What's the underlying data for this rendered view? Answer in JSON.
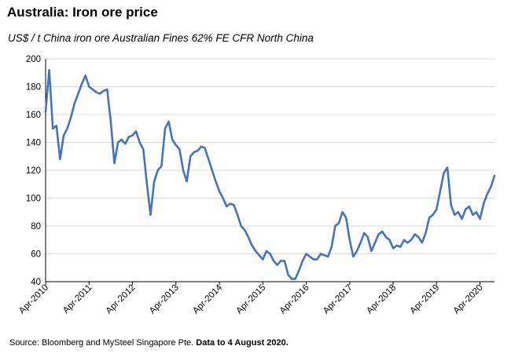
{
  "page": {
    "title": "Australia: Iron ore price",
    "subtitle": "US$ / t  China iron ore Australian Fines 62% FE CFR North China",
    "source": "Source: Bloomberg and MySteel Singapore Pte.",
    "data_note": "Data to 4 August 2020."
  },
  "colors": {
    "line": "#4472C4",
    "grid": "#d9d9d9",
    "axis": "#000000"
  },
  "chart_data": {
    "type": "line",
    "title": "Australia: Iron ore price",
    "ylabel": "US$ / t  China iron ore Australian Fines 62% FE CFR North China",
    "xlabel": "",
    "ylim": [
      40,
      200
    ],
    "yticks": [
      40,
      60,
      80,
      100,
      120,
      140,
      160,
      180,
      200
    ],
    "xlim": [
      "2010-04",
      "2020-08"
    ],
    "xticks": [
      "Apr-2010",
      "Apr-2011",
      "Apr-2012",
      "Apr-2013",
      "Apr-2014",
      "Apr-2015",
      "Apr-2016",
      "Apr-2017",
      "Apr-2018",
      "Apr-2019",
      "Apr-2020"
    ],
    "grid": true,
    "legend": "none",
    "series": [
      {
        "x": [
          "2010-04",
          "2010-05",
          "2010-06",
          "2010-07",
          "2010-08",
          "2010-09",
          "2010-10",
          "2010-11",
          "2010-12",
          "2011-01",
          "2011-02",
          "2011-03",
          "2011-04",
          "2011-05",
          "2011-06",
          "2011-07",
          "2011-08",
          "2011-09",
          "2011-10",
          "2011-11",
          "2011-12",
          "2012-01",
          "2012-02",
          "2012-03",
          "2012-04",
          "2012-05",
          "2012-06",
          "2012-07",
          "2012-08",
          "2012-09",
          "2012-10",
          "2012-11",
          "2012-12",
          "2013-01",
          "2013-02",
          "2013-03",
          "2013-04",
          "2013-05",
          "2013-06",
          "2013-07",
          "2013-08",
          "2013-09",
          "2013-10",
          "2013-11",
          "2013-12",
          "2014-01",
          "2014-02",
          "2014-03",
          "2014-04",
          "2014-05",
          "2014-06",
          "2014-07",
          "2014-08",
          "2014-09",
          "2014-10",
          "2014-11",
          "2014-12",
          "2015-01",
          "2015-02",
          "2015-03",
          "2015-04",
          "2015-05",
          "2015-06",
          "2015-07",
          "2015-08",
          "2015-09",
          "2015-10",
          "2015-11",
          "2015-12",
          "2016-01",
          "2016-02",
          "2016-03",
          "2016-04",
          "2016-05",
          "2016-06",
          "2016-07",
          "2016-08",
          "2016-09",
          "2016-10",
          "2016-11",
          "2016-12",
          "2017-01",
          "2017-02",
          "2017-03",
          "2017-04",
          "2017-05",
          "2017-06",
          "2017-07",
          "2017-08",
          "2017-09",
          "2017-10",
          "2017-11",
          "2017-12",
          "2018-01",
          "2018-02",
          "2018-03",
          "2018-04",
          "2018-05",
          "2018-06",
          "2018-07",
          "2018-08",
          "2018-09",
          "2018-10",
          "2018-11",
          "2018-12",
          "2019-01",
          "2019-02",
          "2019-03",
          "2019-04",
          "2019-05",
          "2019-06",
          "2019-07",
          "2019-08",
          "2019-09",
          "2019-10",
          "2019-11",
          "2019-12",
          "2020-01",
          "2020-02",
          "2020-03",
          "2020-04",
          "2020-05",
          "2020-06",
          "2020-07",
          "2020-08"
        ],
        "y": [
          162,
          192,
          150,
          152,
          128,
          145,
          150,
          158,
          168,
          175,
          182,
          188,
          180,
          178,
          176,
          175,
          177,
          178,
          155,
          125,
          140,
          142,
          139,
          144,
          145,
          148,
          140,
          135,
          110,
          88,
          112,
          120,
          123,
          150,
          155,
          142,
          138,
          135,
          120,
          112,
          130,
          133,
          134,
          137,
          136,
          128,
          120,
          112,
          105,
          100,
          94,
          96,
          95,
          88,
          80,
          77,
          72,
          66,
          62,
          59,
          56,
          62,
          60,
          55,
          52,
          55,
          55,
          45,
          42,
          42,
          48,
          55,
          60,
          58,
          56,
          56,
          60,
          59,
          58,
          65,
          80,
          82,
          90,
          86,
          70,
          58,
          62,
          68,
          75,
          72,
          62,
          68,
          74,
          76,
          72,
          70,
          64,
          66,
          65,
          70,
          68,
          70,
          74,
          72,
          68,
          75,
          86,
          88,
          92,
          105,
          118,
          122,
          95,
          88,
          90,
          85,
          92,
          94,
          88,
          90,
          85,
          96,
          103,
          108,
          116
        ]
      }
    ]
  }
}
